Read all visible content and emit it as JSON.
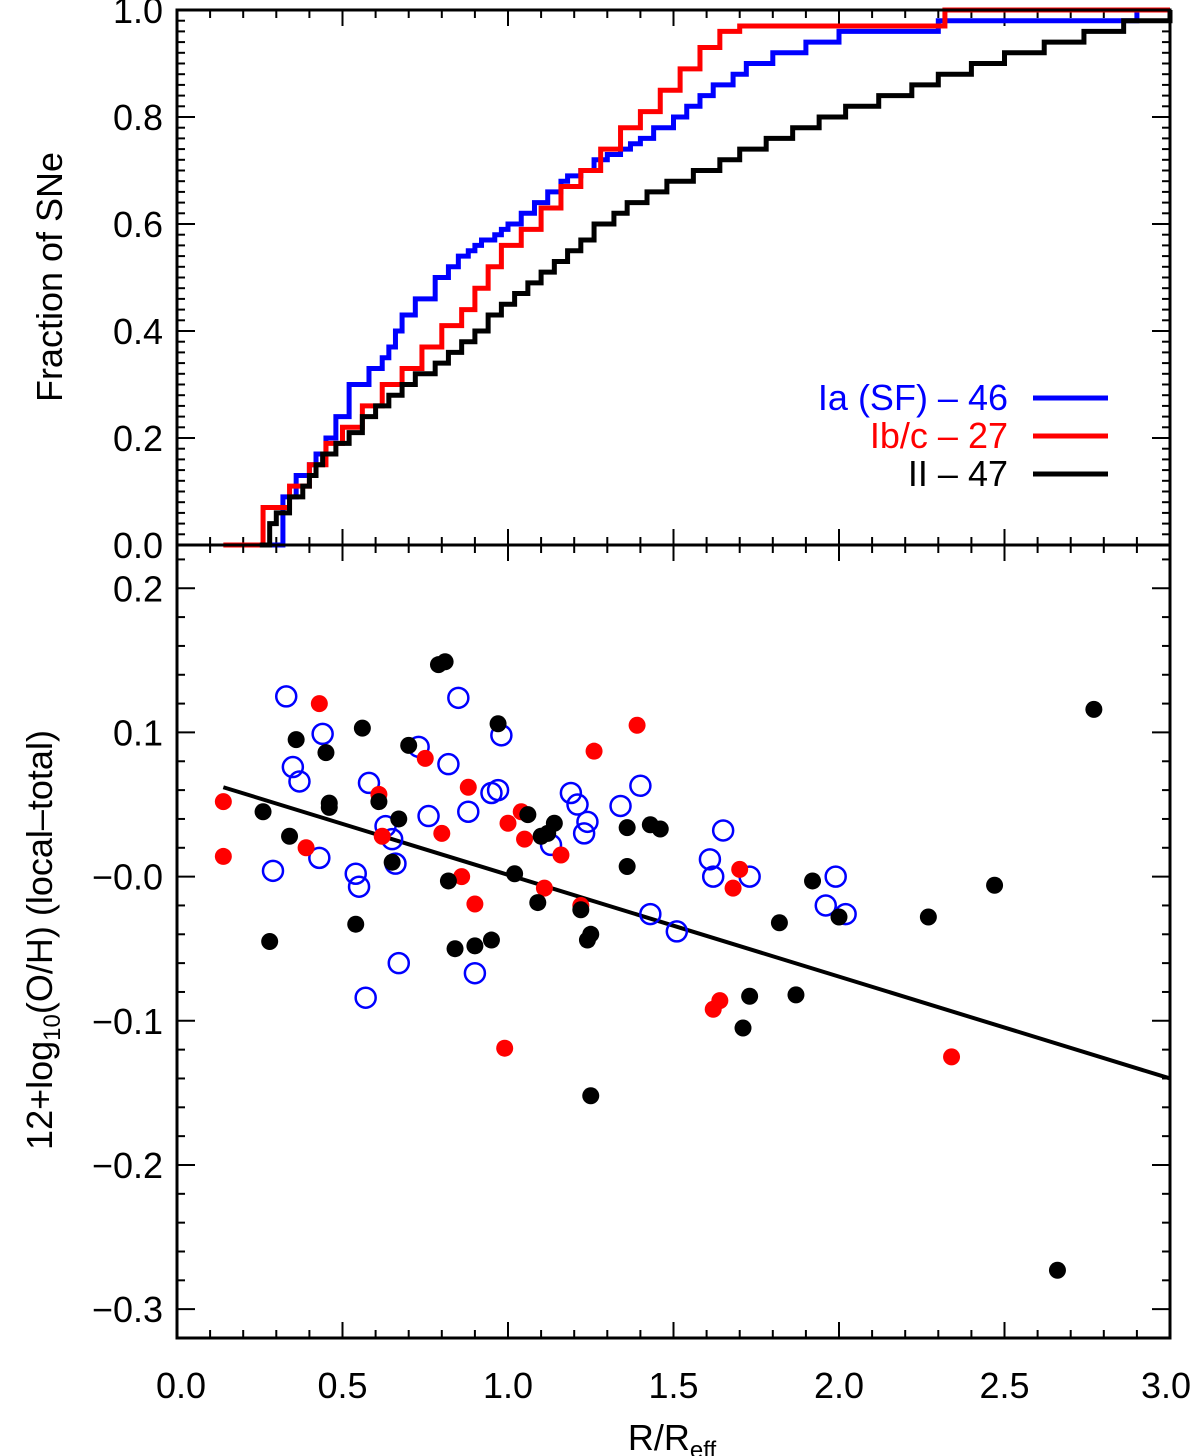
{
  "chart_data": [
    {
      "type": "line",
      "panel": "top",
      "title": "",
      "xlabel": "",
      "ylabel": "Fraction of SNe",
      "xlim": [
        0.0,
        3.0
      ],
      "ylim": [
        0.0,
        1.0
      ],
      "y_ticks": [
        "0.0",
        "0.2",
        "0.4",
        "0.6",
        "0.8",
        "1.0"
      ],
      "legend_position": "right",
      "series": [
        {
          "name": "Ia (SF) – 46",
          "color": "#0000ff",
          "x": [
            0.28,
            0.32,
            0.36,
            0.4,
            0.42,
            0.45,
            0.48,
            0.52,
            0.58,
            0.62,
            0.64,
            0.66,
            0.68,
            0.72,
            0.78,
            0.82,
            0.85,
            0.88,
            0.9,
            0.92,
            0.94,
            0.96,
            0.98,
            1.0,
            1.04,
            1.08,
            1.12,
            1.16,
            1.18,
            1.22,
            1.26,
            1.3,
            1.34,
            1.37,
            1.4,
            1.44,
            1.5,
            1.54,
            1.58,
            1.62,
            1.68,
            1.72,
            1.8,
            1.9,
            2.0,
            2.3,
            2.9,
            3.0
          ],
          "y": [
            0.0,
            0.09,
            0.13,
            0.15,
            0.17,
            0.2,
            0.24,
            0.3,
            0.33,
            0.35,
            0.37,
            0.4,
            0.43,
            0.46,
            0.5,
            0.52,
            0.54,
            0.55,
            0.56,
            0.57,
            0.57,
            0.58,
            0.59,
            0.6,
            0.62,
            0.64,
            0.66,
            0.68,
            0.69,
            0.7,
            0.72,
            0.73,
            0.74,
            0.75,
            0.76,
            0.78,
            0.8,
            0.82,
            0.84,
            0.86,
            0.88,
            0.9,
            0.92,
            0.94,
            0.96,
            0.98,
            1.0,
            1.0
          ]
        },
        {
          "name": "Ib/c – 27",
          "color": "#ff0000",
          "x": [
            0.14,
            0.26,
            0.34,
            0.4,
            0.45,
            0.5,
            0.56,
            0.62,
            0.68,
            0.74,
            0.8,
            0.86,
            0.9,
            0.94,
            0.98,
            1.04,
            1.1,
            1.16,
            1.22,
            1.28,
            1.34,
            1.4,
            1.46,
            1.52,
            1.58,
            1.64,
            1.7,
            2.32,
            3.0
          ],
          "y": [
            0.0,
            0.07,
            0.11,
            0.15,
            0.19,
            0.22,
            0.26,
            0.3,
            0.33,
            0.37,
            0.41,
            0.44,
            0.48,
            0.52,
            0.56,
            0.59,
            0.63,
            0.67,
            0.7,
            0.74,
            0.78,
            0.81,
            0.85,
            0.89,
            0.93,
            0.96,
            0.97,
            1.0,
            1.0
          ]
        },
        {
          "name": "II – 47",
          "color": "#000000",
          "x": [
            0.25,
            0.28,
            0.3,
            0.34,
            0.38,
            0.4,
            0.42,
            0.44,
            0.48,
            0.52,
            0.56,
            0.6,
            0.64,
            0.68,
            0.72,
            0.78,
            0.82,
            0.86,
            0.9,
            0.94,
            0.98,
            1.02,
            1.06,
            1.1,
            1.14,
            1.18,
            1.22,
            1.26,
            1.32,
            1.36,
            1.42,
            1.48,
            1.56,
            1.64,
            1.7,
            1.78,
            1.86,
            1.94,
            2.02,
            2.12,
            2.22,
            2.3,
            2.4,
            2.5,
            2.62,
            2.74,
            2.86,
            3.0
          ],
          "y": [
            0.0,
            0.04,
            0.06,
            0.09,
            0.11,
            0.13,
            0.15,
            0.17,
            0.19,
            0.21,
            0.24,
            0.26,
            0.28,
            0.3,
            0.32,
            0.34,
            0.36,
            0.38,
            0.4,
            0.43,
            0.45,
            0.47,
            0.49,
            0.51,
            0.53,
            0.55,
            0.57,
            0.6,
            0.62,
            0.64,
            0.66,
            0.68,
            0.7,
            0.72,
            0.74,
            0.76,
            0.78,
            0.8,
            0.82,
            0.84,
            0.86,
            0.88,
            0.9,
            0.92,
            0.94,
            0.96,
            0.98,
            1.0
          ]
        }
      ]
    },
    {
      "type": "scatter",
      "panel": "bottom",
      "title": "",
      "xlabel_main": "R/R",
      "xlabel_sub": "eff",
      "ylabel_main": "12+log",
      "ylabel_sub": "10",
      "ylabel_rest": "(O/H) (local–total)",
      "xlim": [
        0.0,
        3.0
      ],
      "ylim": [
        -0.32,
        0.23
      ],
      "x_ticks": [
        "0.0",
        "0.5",
        "1.0",
        "1.5",
        "2.0",
        "2.5",
        "3.0"
      ],
      "y_ticks": [
        "0.2",
        "0.1",
        "−0.0",
        "−0.1",
        "−0.2",
        "−0.3"
      ],
      "fit_line": {
        "x": [
          0.14,
          3.0
        ],
        "y": [
          0.062,
          -0.14
        ]
      },
      "series": [
        {
          "name": "Ia (SF)",
          "marker": "open-circle",
          "color": "#0000ff",
          "points": [
            [
              0.33,
              0.125
            ],
            [
              0.35,
              0.076
            ],
            [
              0.37,
              0.066
            ],
            [
              0.44,
              0.099
            ],
            [
              0.43,
              0.013
            ],
            [
              0.29,
              0.004
            ],
            [
              0.54,
              0.002
            ],
            [
              0.55,
              -0.007
            ],
            [
              0.57,
              -0.084
            ],
            [
              0.58,
              0.065
            ],
            [
              0.63,
              0.035
            ],
            [
              0.65,
              0.026
            ],
            [
              0.66,
              0.009
            ],
            [
              0.67,
              -0.06
            ],
            [
              0.73,
              0.09
            ],
            [
              0.76,
              0.042
            ],
            [
              0.82,
              0.078
            ],
            [
              0.85,
              0.124
            ],
            [
              0.88,
              0.045
            ],
            [
              0.9,
              -0.067
            ],
            [
              0.95,
              0.058
            ],
            [
              0.97,
              0.06
            ],
            [
              0.98,
              0.098
            ],
            [
              1.13,
              0.022
            ],
            [
              1.19,
              0.058
            ],
            [
              1.21,
              0.05
            ],
            [
              1.23,
              0.03
            ],
            [
              1.24,
              0.038
            ],
            [
              1.34,
              0.049
            ],
            [
              1.4,
              0.063
            ],
            [
              1.43,
              -0.026
            ],
            [
              1.51,
              -0.038
            ],
            [
              1.61,
              0.012
            ],
            [
              1.62,
              0.0
            ],
            [
              1.65,
              0.032
            ],
            [
              1.73,
              0.0
            ],
            [
              1.96,
              -0.02
            ],
            [
              1.99,
              0.0
            ],
            [
              2.02,
              -0.026
            ]
          ]
        },
        {
          "name": "Ib/c",
          "marker": "filled-circle",
          "color": "#ff0000",
          "points": [
            [
              0.14,
              0.052
            ],
            [
              0.14,
              0.014
            ],
            [
              0.39,
              0.02
            ],
            [
              0.43,
              0.12
            ],
            [
              0.61,
              0.057
            ],
            [
              0.62,
              0.028
            ],
            [
              0.75,
              0.082
            ],
            [
              0.8,
              0.03
            ],
            [
              0.86,
              0.0
            ],
            [
              0.88,
              0.062
            ],
            [
              0.9,
              -0.019
            ],
            [
              0.99,
              -0.119
            ],
            [
              1.0,
              0.037
            ],
            [
              1.04,
              0.045
            ],
            [
              1.05,
              0.026
            ],
            [
              1.11,
              -0.008
            ],
            [
              1.16,
              0.015
            ],
            [
              1.22,
              -0.02
            ],
            [
              1.26,
              0.087
            ],
            [
              1.39,
              0.105
            ],
            [
              1.62,
              -0.092
            ],
            [
              1.64,
              -0.086
            ],
            [
              1.68,
              -0.008
            ],
            [
              1.7,
              0.005
            ],
            [
              2.34,
              -0.125
            ]
          ]
        },
        {
          "name": "II",
          "marker": "filled-circle",
          "color": "#000000",
          "points": [
            [
              0.26,
              0.045
            ],
            [
              0.28,
              -0.045
            ],
            [
              0.34,
              0.028
            ],
            [
              0.36,
              0.095
            ],
            [
              0.45,
              0.086
            ],
            [
              0.46,
              0.051
            ],
            [
              0.46,
              0.048
            ],
            [
              0.54,
              -0.033
            ],
            [
              0.56,
              0.103
            ],
            [
              0.61,
              0.052
            ],
            [
              0.65,
              0.01
            ],
            [
              0.67,
              0.04
            ],
            [
              0.7,
              0.091
            ],
            [
              0.79,
              0.147
            ],
            [
              0.81,
              0.149
            ],
            [
              0.82,
              -0.003
            ],
            [
              0.84,
              -0.05
            ],
            [
              0.9,
              -0.048
            ],
            [
              0.95,
              -0.044
            ],
            [
              0.97,
              0.106
            ],
            [
              1.02,
              0.002
            ],
            [
              1.06,
              0.043
            ],
            [
              1.09,
              -0.018
            ],
            [
              1.1,
              0.028
            ],
            [
              1.12,
              0.03
            ],
            [
              1.14,
              0.037
            ],
            [
              1.22,
              -0.023
            ],
            [
              1.24,
              -0.044
            ],
            [
              1.25,
              -0.04
            ],
            [
              1.25,
              -0.152
            ],
            [
              1.36,
              0.034
            ],
            [
              1.36,
              0.007
            ],
            [
              1.43,
              0.036
            ],
            [
              1.46,
              0.033
            ],
            [
              1.71,
              -0.105
            ],
            [
              1.73,
              -0.083
            ],
            [
              1.82,
              -0.032
            ],
            [
              1.87,
              -0.082
            ],
            [
              1.92,
              -0.003
            ],
            [
              2.0,
              -0.028
            ],
            [
              2.27,
              -0.028
            ],
            [
              2.47,
              -0.006
            ],
            [
              2.66,
              -0.273
            ],
            [
              2.77,
              0.116
            ]
          ]
        }
      ]
    }
  ]
}
